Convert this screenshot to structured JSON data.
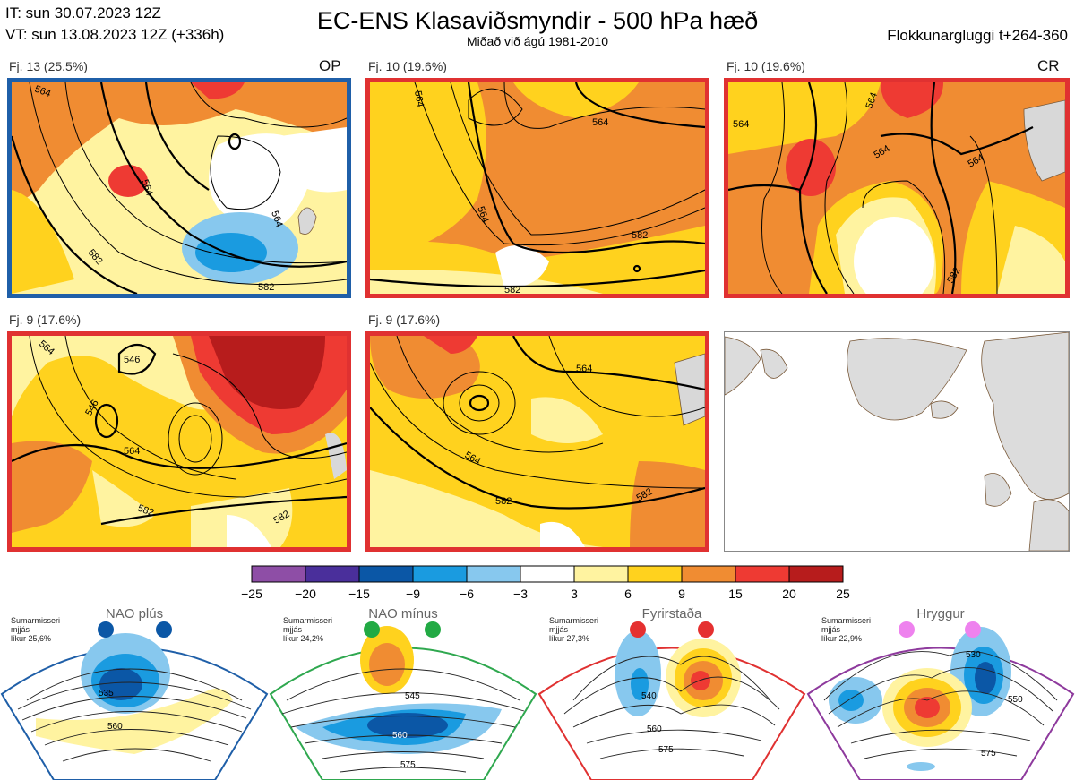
{
  "header": {
    "init_time": "IT: sun 30.07.2023 12Z",
    "valid_time": "VT: sun 13.08.2023 12Z  (+336h)",
    "title": "EC-ENS Klasaviðsmyndir - 500 hPa hæð",
    "subtitle": "Miðað við ágú 1981-2010",
    "window": "Flokkunargluggi t+264-360"
  },
  "panels": [
    {
      "label": "Fj. 13 (25.5%)",
      "tag": "OP",
      "border": "#1f5fa8",
      "contours": [
        "564",
        "564",
        "582",
        "564",
        "582"
      ]
    },
    {
      "label": "Fj. 10 (19.6%)",
      "tag": "",
      "border": "#e03131",
      "contours": [
        "564",
        "564",
        "564",
        "582",
        "582"
      ]
    },
    {
      "label": "Fj. 10 (19.6%)",
      "tag": "CR",
      "border": "#e03131",
      "contours": [
        "564",
        "564",
        "564",
        "564",
        "582"
      ]
    },
    {
      "label": "Fj. 9 (17.6%)",
      "tag": "",
      "border": "#e03131",
      "contours": [
        "564",
        "546",
        "546",
        "564",
        "582",
        "582"
      ]
    },
    {
      "label": "Fj. 9 (17.6%)",
      "tag": "",
      "border": "#e03131",
      "contours": [
        "564",
        "564",
        "582",
        "582"
      ]
    }
  ],
  "colorbar": {
    "ticks": [
      "−25",
      "−20",
      "−15",
      "−9",
      "−6",
      "−3",
      "3",
      "6",
      "9",
      "15",
      "20",
      "25"
    ],
    "colors": [
      "#8e4ea6",
      "#4a2f9b",
      "#0b57a6",
      "#1a9be0",
      "#87c8ee",
      "#ffffff",
      "#fff3a0",
      "#ffd21e",
      "#f08c32",
      "#ee3a33",
      "#b71c1c"
    ]
  },
  "regimes": [
    {
      "name": "NAO plús",
      "note1": "Sumarmisseri",
      "note2": "mjjás",
      "note3": "líkur 25,6%",
      "dot_color": "#0b57a6",
      "border": "#1f5fa8",
      "contours": [
        "535",
        "560"
      ]
    },
    {
      "name": "NAO mínus",
      "note1": "Sumarmisseri",
      "note2": "mjjás",
      "note3": "líkur 24,2%",
      "dot_color": "#22aa44",
      "border": "#2fa84f",
      "contours": [
        "545",
        "560",
        "575"
      ]
    },
    {
      "name": "Fyrirstaða",
      "note1": "Sumarmisseri",
      "note2": "mjjás",
      "note3": "líkur 27,3%",
      "dot_color": "#e53030",
      "border": "#e03131",
      "contours": [
        "540",
        "560",
        "575"
      ]
    },
    {
      "name": "Hryggur",
      "note1": "Sumarmisseri",
      "note2": "mjjás",
      "note3": "líkur 22,9%",
      "dot_color": "#ee82ee",
      "border": "#8e3a9d",
      "contours": [
        "530",
        "550",
        "575"
      ]
    }
  ]
}
